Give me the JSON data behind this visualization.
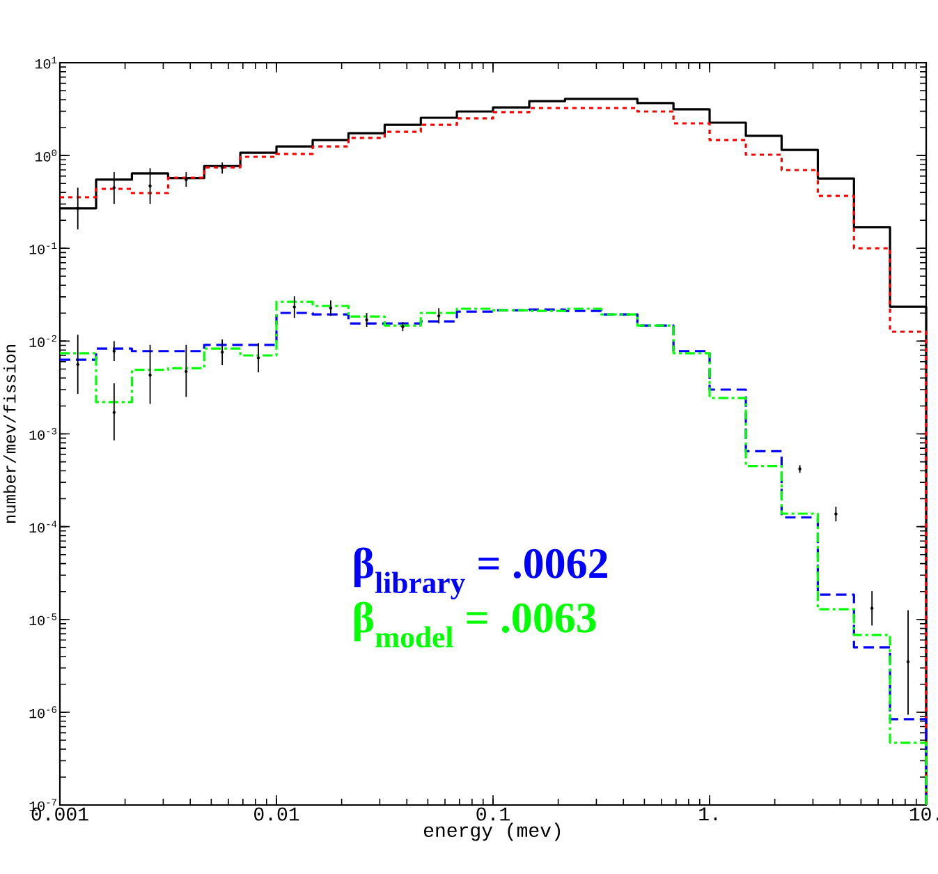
{
  "chart_data": {
    "type": "histogram",
    "xlabel": "energy (mev)",
    "ylabel": "number/mev/fission",
    "log": "xy",
    "xlim": [
      0.001,
      10
    ],
    "ylim": [
      1e-07,
      10
    ],
    "xticks": [
      0.001,
      0.01,
      0.1,
      {
        "value": 1,
        "label": "1."
      },
      {
        "value": 10,
        "label": "10."
      }
    ],
    "yticks": [
      {
        "value": 1e-07,
        "label": "10$^{-7}$"
      },
      {
        "value": 1e-06,
        "label": "10$^{-6}$"
      },
      {
        "value": 1e-05,
        "label": "10$^{-5}$"
      },
      {
        "value": 0.0001,
        "label": "10$^{-4}$"
      },
      {
        "value": 0.001,
        "label": "10$^{-3}$"
      },
      {
        "value": 0.01,
        "label": "10$^{-2}$"
      },
      {
        "value": 0.1,
        "label": "10$^{-1}$"
      },
      {
        "value": 1,
        "label": "10$^{0}$"
      },
      {
        "value": 10,
        "label": "10$^{1}$"
      }
    ],
    "bins": [
      0.001,
      0.00147,
      0.00215,
      0.00316,
      0.00464,
      0.00681,
      0.01,
      0.0147,
      0.0215,
      0.0316,
      0.0464,
      0.0681,
      0.1,
      0.147,
      0.215,
      0.316,
      0.464,
      0.681,
      1,
      1.47,
      2.15,
      3.16,
      4.64,
      6.81,
      10
    ],
    "series": [
      {
        "color": "#000000",
        "line_style": "solid",
        "values": [
          0.27,
          0.55,
          0.64,
          0.57,
          0.77,
          1.07,
          1.25,
          1.47,
          1.74,
          2.14,
          2.55,
          2.98,
          3.3,
          3.86,
          4.07,
          4.07,
          3.67,
          3.14,
          2.26,
          1.63,
          1.15,
          0.566,
          0.169,
          0.0234
        ]
      },
      {
        "color": "#ff0000",
        "line_style": "dotted",
        "values": [
          0.355,
          0.437,
          0.394,
          0.576,
          0.746,
          0.968,
          1.04,
          1.25,
          1.55,
          1.8,
          2.14,
          2.51,
          2.93,
          3.25,
          3.25,
          3.25,
          2.98,
          2.22,
          1.47,
          1.02,
          0.697,
          0.367,
          0.1,
          0.0126
        ]
      },
      {
        "color": "#0000ff",
        "line_style": "dashed",
        "values": [
          0.0063,
          0.0083,
          0.0078,
          0.0078,
          0.0091,
          0.0091,
          0.0201,
          0.0194,
          0.0155,
          0.0155,
          0.0163,
          0.0208,
          0.0215,
          0.0219,
          0.0211,
          0.0194,
          0.0147,
          0.0078,
          0.003,
          0.00065,
          0.000126,
          1.85e-05,
          5e-06,
          8.4e-07
        ]
      },
      {
        "color": "#00ff00",
        "line_style": "dashdot",
        "values": [
          0.0074,
          0.0022,
          0.0049,
          0.0051,
          0.0083,
          0.007,
          0.0265,
          0.0239,
          0.0184,
          0.0147,
          0.0201,
          0.0223,
          0.0215,
          0.0211,
          0.0223,
          0.0194,
          0.0147,
          0.0074,
          0.00243,
          0.00045,
          0.000138,
          1.29e-05,
          6.8e-06,
          4.7e-07
        ]
      },
      {
        "type": "scatter",
        "color": "#000000",
        "x": [
          0.00121,
          0.00178,
          0.00261,
          0.00383,
          0.00562,
          0.00121,
          0.00178,
          0.00178,
          0.00261,
          0.00383,
          0.00562,
          0.00825,
          0.0121,
          0.0178,
          0.0261,
          0.0383,
          0.0562,
          2.61,
          3.83,
          5.62,
          8.25
        ],
        "values": [
          0.27,
          0.45,
          0.47,
          0.55,
          0.74,
          0.0056,
          0.0078,
          0.0017,
          0.0043,
          0.0047,
          0.0076,
          0.0066,
          0.0233,
          0.0227,
          0.0169,
          0.0143,
          0.0187,
          0.00042,
          0.000137,
          1.32e-05,
          3.5e-06
        ],
        "errors": [
          [
            0.16,
            0.45
          ],
          [
            0.3,
            0.66
          ],
          [
            0.3,
            0.73
          ],
          [
            0.46,
            0.66
          ],
          [
            0.64,
            0.84
          ],
          [
            0.0027,
            0.0117
          ],
          [
            0.0061,
            0.01
          ],
          [
            0.00085,
            0.0035
          ],
          [
            0.0021,
            0.0091
          ],
          [
            0.0025,
            0.0091
          ],
          [
            0.0055,
            0.0104
          ],
          [
            0.0046,
            0.0095
          ],
          [
            0.0178,
            0.0304
          ],
          [
            0.0187,
            0.0274
          ],
          [
            0.0142,
            0.0201
          ],
          [
            0.0128,
            0.016
          ],
          [
            0.0155,
            0.0226
          ],
          [
            0.00038,
            0.00046
          ],
          [
            0.000114,
            0.000164
          ],
          [
            8.6e-06,
            2.02e-05
          ],
          [
            9.4e-07,
            1.26e-05
          ]
        ]
      }
    ],
    "annotations": [
      "β$_{library}$ = .0062",
      "β$_{model}$ = .0063"
    ]
  }
}
